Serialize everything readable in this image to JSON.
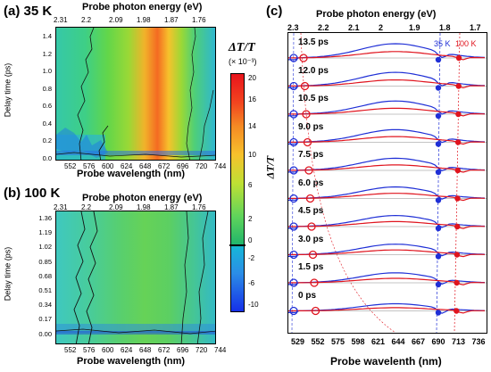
{
  "panel_a": {
    "label": "(a) 35 K",
    "top_axis_title": "Probe photon energy (eV)",
    "top_ticks": [
      "2.31",
      "2.2",
      "2.09",
      "1.98",
      "1.87",
      "1.76"
    ],
    "bottom_axis_title": "Probe wavelength (nm)",
    "bottom_ticks": [
      "552",
      "576",
      "600",
      "624",
      "648",
      "672",
      "696",
      "720",
      "744"
    ],
    "y_axis_title": "Delay time (ps)",
    "y_ticks": [
      "1.4",
      "1.2",
      "1.0",
      "0.8",
      "0.6",
      "0.4",
      "0.2",
      "0.0"
    ]
  },
  "panel_b": {
    "label": "(b) 100 K",
    "top_axis_title": "Probe photon energy (eV)",
    "top_ticks": [
      "2.31",
      "2.2",
      "2.09",
      "1.98",
      "1.87",
      "1.76"
    ],
    "bottom_axis_title": "Probe wavelength (nm)",
    "bottom_ticks": [
      "552",
      "576",
      "600",
      "624",
      "648",
      "672",
      "696",
      "720",
      "744"
    ],
    "y_axis_title": "Delay time (ps)",
    "y_ticks": [
      "1.36",
      "1.19",
      "1.02",
      "0.85",
      "0.68",
      "0.51",
      "0.34",
      "0.17",
      "0.00"
    ]
  },
  "colorbar": {
    "title": "ΔT/T",
    "unit": "(× 10⁻³)",
    "ticks": [
      "20",
      "16",
      "14",
      "10",
      "6",
      "2",
      "0",
      "-2",
      "-6",
      "-10"
    ]
  },
  "panel_c": {
    "label": "(c)",
    "top_axis_title": "Probe photon energy (eV)",
    "top_ticks": [
      "2.3",
      "2.2",
      "2.1",
      "2",
      "1.9",
      "1.8",
      "1.7"
    ],
    "bottom_axis_title": "Probe wavelenth (nm)",
    "bottom_ticks": [
      "529",
      "552",
      "575",
      "598",
      "621",
      "644",
      "667",
      "690",
      "713",
      "736"
    ],
    "y_axis_title": "ΔT/T",
    "legend_35k": "35 K",
    "legend_100k": "100 K",
    "delays": [
      "13.5 ps",
      "12.0 ps",
      "10.5 ps",
      "9.0 ps",
      "7.5 ps",
      "6.0 ps",
      "4.5 ps",
      "3.0 ps",
      "1.5 ps",
      "0 ps"
    ],
    "colors": {
      "k35": "#1f2fd6",
      "k100": "#e0141e",
      "baseline": "#888888"
    }
  }
}
